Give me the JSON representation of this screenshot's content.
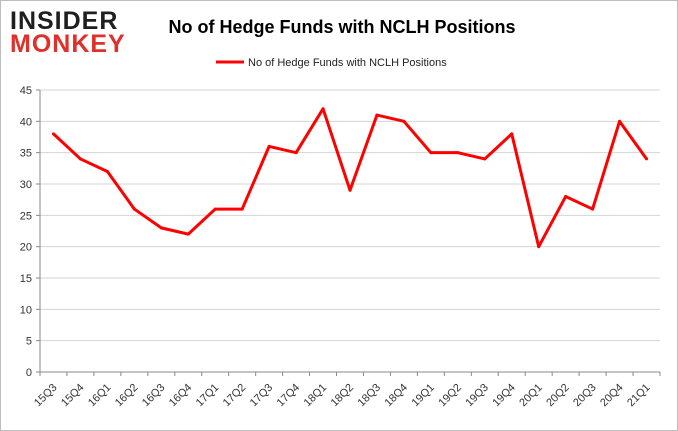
{
  "brand": {
    "line1": "INSIDER",
    "line2": "MONKEY",
    "color_dark": "#1f1f1f",
    "color_accent": "#e0302a"
  },
  "chart_data": {
    "type": "line",
    "title": "No of Hedge Funds with NCLH Positions",
    "xlabel": "",
    "ylabel": "",
    "categories": [
      "15Q3",
      "15Q4",
      "16Q1",
      "16Q2",
      "16Q3",
      "16Q4",
      "17Q1",
      "17Q2",
      "17Q3",
      "17Q4",
      "18Q1",
      "18Q2",
      "18Q3",
      "18Q4",
      "19Q1",
      "19Q2",
      "19Q3",
      "19Q4",
      "20Q1",
      "20Q2",
      "20Q3",
      "20Q4",
      "21Q1"
    ],
    "series": [
      {
        "name": "No of Hedge Funds with NCLH Positions",
        "color": "#ff0000",
        "values": [
          38,
          34,
          32,
          26,
          23,
          22,
          26,
          26,
          36,
          35,
          42,
          29,
          41,
          40,
          35,
          35,
          34,
          38,
          20,
          28,
          26,
          40,
          34
        ]
      }
    ],
    "ylim": [
      0,
      45
    ],
    "yticks": [
      0,
      5,
      10,
      15,
      20,
      25,
      30,
      35,
      40,
      45
    ],
    "grid": true,
    "legend": "top-center"
  }
}
